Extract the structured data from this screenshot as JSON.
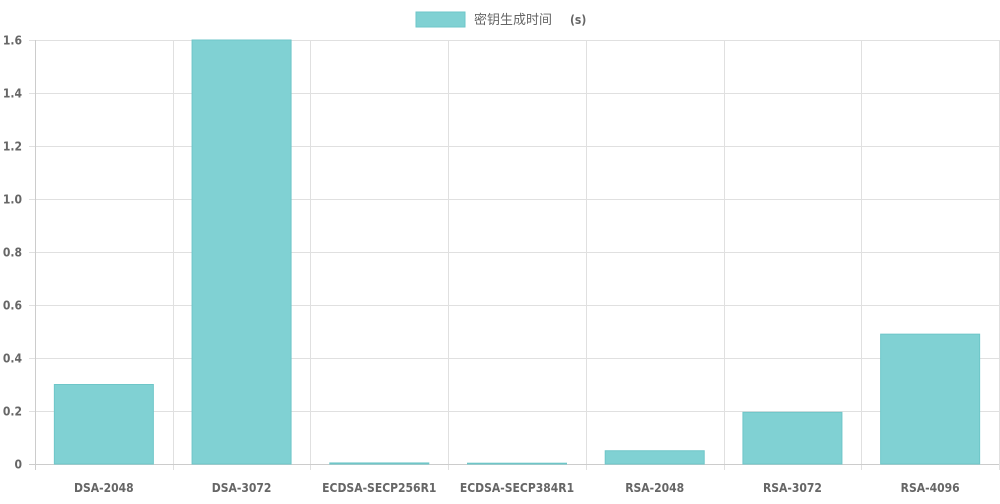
{
  "chart_data": {
    "type": "bar",
    "categories": [
      "DSA-2048",
      "DSA-3072",
      "ECDSA-SECP256R1",
      "ECDSA-SECP384R1",
      "RSA-2048",
      "RSA-3072",
      "RSA-4096"
    ],
    "series": [
      {
        "name": "密钥生成时间 (s)",
        "values": [
          0.3,
          1.6,
          0.004,
          0.001,
          0.05,
          0.195,
          0.49
        ]
      }
    ],
    "y_ticks": [
      "0",
      "0.2",
      "0.4",
      "0.6",
      "0.8",
      "1.0",
      "1.2",
      "1.4",
      "1.6"
    ],
    "ylim": [
      0,
      1.6
    ],
    "grid": true,
    "legend_position": "top-center",
    "colors": {
      "bar_fill": "#80d1d3",
      "bar_stroke": "#6ec6c8",
      "grid": "#e0e0e0",
      "axis": "#cccccc",
      "text": "#666666"
    }
  },
  "legend": {
    "main": "密钥生成时间",
    "unit": "(s)"
  }
}
